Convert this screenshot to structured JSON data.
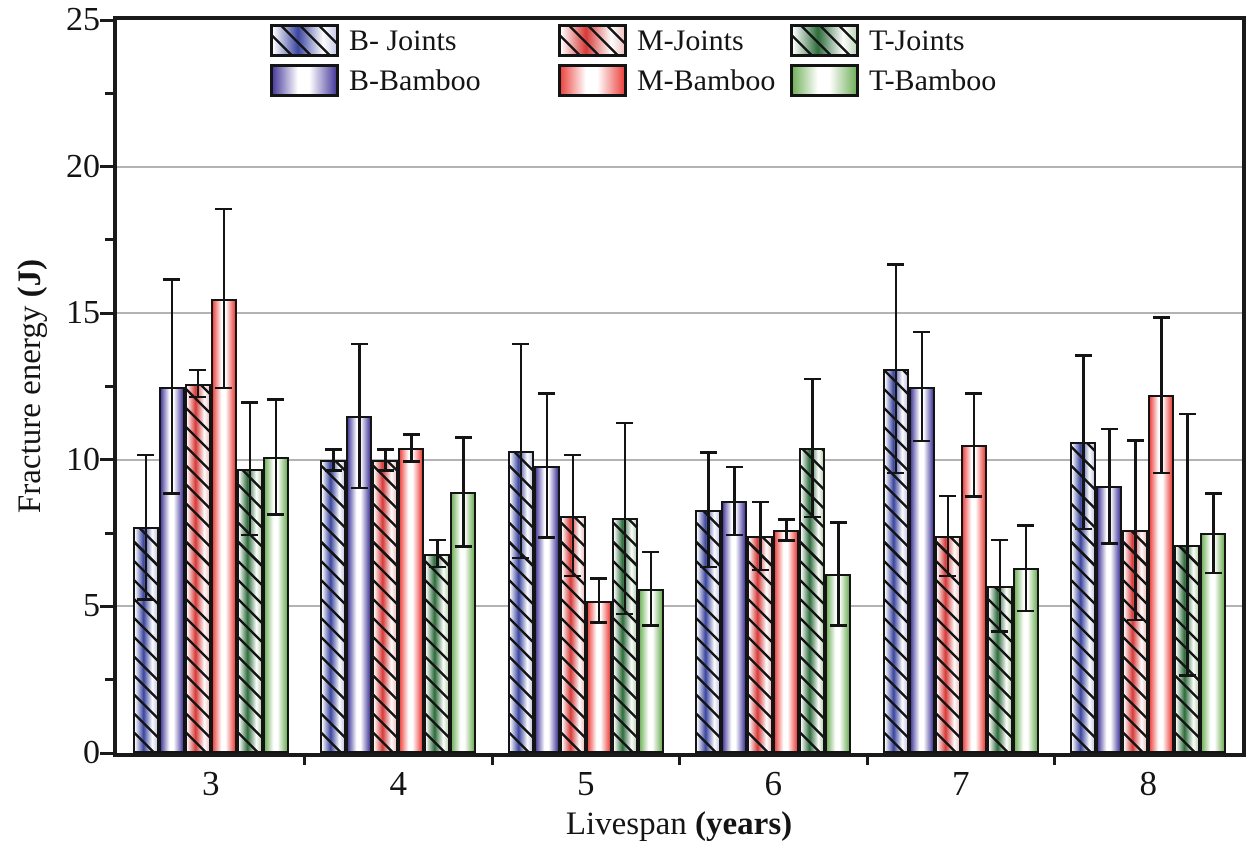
{
  "figure": {
    "background": "#ffffff",
    "frame_color": "#1a1a1a",
    "gridline_color": "#b3b3b3"
  },
  "chart_data": {
    "type": "bar",
    "title": "",
    "xlabel": "Livespan (years)",
    "xlabel_regular": "Livespan ",
    "xlabel_bold": "(years)",
    "ylabel": "Fracture energy (J)",
    "ylabel_regular": "Fracture energy ",
    "ylabel_bold": "(J)",
    "categories": [
      "3",
      "4",
      "5",
      "6",
      "7",
      "8"
    ],
    "ylim": [
      0,
      25
    ],
    "ytick_labels": [
      "0",
      "5",
      "10",
      "15",
      "20",
      "25"
    ],
    "ytick_major_step": 5,
    "ytick_minor_step": 2.5,
    "gridlines_at": [
      5,
      10,
      15,
      20
    ],
    "grid": "horizontal-major",
    "legend_position": "top-center-inside",
    "legend_row_order": [
      "B- Joints",
      "M-Joints",
      "T-Joints",
      "B-Bamboo",
      "M-Bamboo",
      "T-Bamboo"
    ],
    "series": [
      {
        "name": "B- Joints",
        "pattern": "hatched",
        "color": "#3a459e",
        "edge_tint": "#c9cde8",
        "values": [
          7.7,
          10.0,
          10.3,
          8.3,
          13.1,
          10.6
        ],
        "errors": [
          2.5,
          0.4,
          3.7,
          2.0,
          3.6,
          3.0
        ]
      },
      {
        "name": "B-Bamboo",
        "pattern": "solid",
        "color": "#4a3f9e",
        "edge_tint": "#ffffff",
        "values": [
          12.5,
          11.5,
          9.8,
          8.6,
          12.5,
          9.1
        ],
        "errors": [
          3.7,
          2.5,
          2.5,
          1.2,
          1.9,
          2.0
        ]
      },
      {
        "name": "M-Joints",
        "pattern": "hatched",
        "color": "#d63a38",
        "edge_tint": "#f0c6c4",
        "values": [
          12.6,
          10.0,
          8.1,
          7.4,
          7.4,
          7.6
        ],
        "errors": [
          0.5,
          0.4,
          2.1,
          1.2,
          1.4,
          3.1
        ]
      },
      {
        "name": "M-Bamboo",
        "pattern": "solid",
        "color": "#ec4742",
        "edge_tint": "#ffffff",
        "values": [
          15.5,
          10.4,
          5.2,
          7.6,
          10.5,
          12.2
        ],
        "errors": [
          3.1,
          0.5,
          0.8,
          0.4,
          1.8,
          2.7
        ]
      },
      {
        "name": "T-Joints",
        "pattern": "hatched",
        "color": "#2e6c3b",
        "edge_tint": "#c2d8ba",
        "values": [
          9.7,
          6.8,
          8.0,
          10.4,
          5.7,
          7.1
        ],
        "errors": [
          2.3,
          0.5,
          3.3,
          2.4,
          1.6,
          4.5
        ]
      },
      {
        "name": "T-Bamboo",
        "pattern": "solid",
        "color": "#74b25e",
        "edge_tint": "#ffffff",
        "values": [
          10.1,
          8.9,
          5.6,
          6.1,
          6.3,
          7.5
        ],
        "errors": [
          2.0,
          1.9,
          1.3,
          1.8,
          1.5,
          1.4
        ]
      }
    ]
  }
}
